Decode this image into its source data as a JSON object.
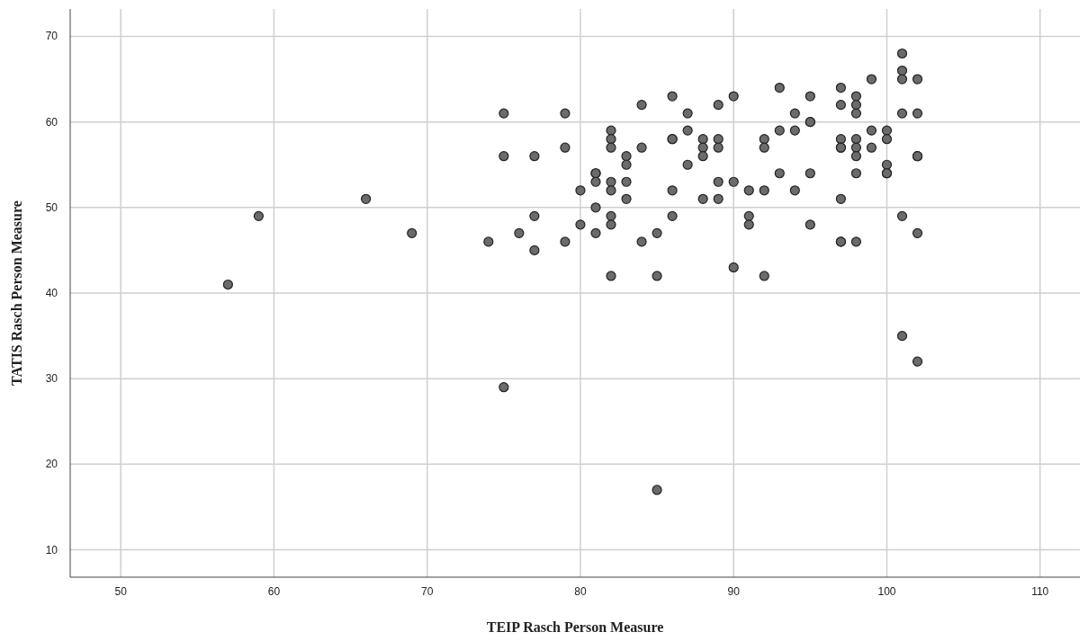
{
  "chart_data": {
    "type": "scatter",
    "xlabel": "TEIP Rasch Person Measure",
    "ylabel": "TATIS Rasch Person Measure",
    "xlim": [
      46.7,
      112.6
    ],
    "ylim": [
      6.8,
      73.2
    ],
    "xticks": [
      50,
      60,
      70,
      80,
      90,
      100,
      110
    ],
    "yticks": [
      10,
      20,
      30,
      40,
      50,
      60,
      70
    ],
    "grid": true,
    "marker": "circle",
    "series": [
      {
        "color": "#6b6b6b",
        "x": [
          57,
          59,
          66,
          69,
          74,
          75,
          75,
          75,
          76,
          77,
          77,
          77,
          79,
          79,
          79,
          80,
          80,
          81,
          81,
          81,
          81,
          81,
          82,
          82,
          82,
          82,
          82,
          82,
          82,
          82,
          83,
          83,
          83,
          83,
          84,
          84,
          84,
          85,
          85,
          85,
          86,
          86,
          86,
          86,
          86,
          87,
          87,
          87,
          88,
          88,
          88,
          88,
          89,
          89,
          89,
          89,
          89,
          90,
          90,
          90,
          91,
          91,
          91,
          92,
          92,
          92,
          92,
          93,
          93,
          93,
          94,
          94,
          94,
          95,
          95,
          95,
          95,
          95,
          97,
          97,
          97,
          97,
          97,
          97,
          97,
          97,
          98,
          98,
          98,
          98,
          98,
          98,
          98,
          98,
          99,
          99,
          99,
          100,
          100,
          100,
          100,
          100,
          101,
          101,
          101,
          101,
          101,
          101,
          102,
          102,
          102,
          102,
          102,
          102
        ],
        "values": [
          41,
          49,
          51,
          47,
          46,
          61,
          56,
          29,
          47,
          56,
          49,
          45,
          61,
          57,
          46,
          52,
          48,
          54,
          54,
          53,
          50,
          47,
          59,
          58,
          57,
          53,
          52,
          49,
          48,
          42,
          56,
          55,
          53,
          51,
          62,
          57,
          46,
          47,
          42,
          17,
          63,
          58,
          58,
          52,
          49,
          61,
          59,
          55,
          58,
          57,
          56,
          51,
          62,
          58,
          57,
          53,
          51,
          63,
          53,
          43,
          52,
          49,
          48,
          58,
          57,
          52,
          42,
          64,
          59,
          54,
          61,
          59,
          52,
          63,
          60,
          60,
          54,
          48,
          64,
          62,
          58,
          57,
          57,
          51,
          46,
          46,
          63,
          62,
          61,
          58,
          57,
          56,
          54,
          46,
          65,
          59,
          57,
          59,
          58,
          55,
          54,
          54,
          68,
          66,
          65,
          61,
          49,
          35,
          65,
          61,
          56,
          56,
          47,
          32
        ]
      }
    ]
  }
}
